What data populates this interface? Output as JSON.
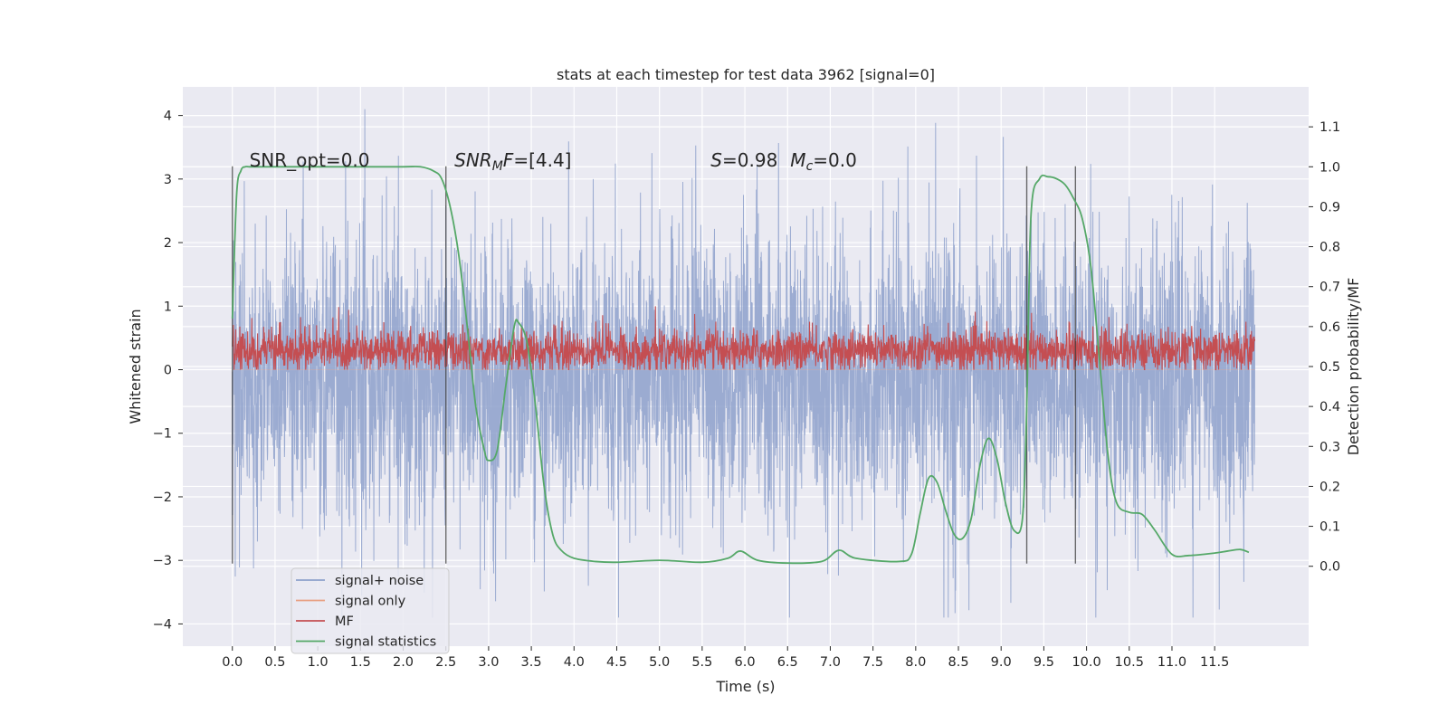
{
  "chart_data": {
    "type": "line",
    "title": "stats at each timestep for test data 3962 [signal=0]",
    "xlabel": "Time (s)",
    "ylabel_left": "Whitened strain",
    "ylabel_right": "Detection probability/MF",
    "xlim": [
      -0.58,
      12.6
    ],
    "ylim_left": [
      -4.35,
      4.45
    ],
    "ylim_right": [
      -0.2,
      1.2
    ],
    "grid": true,
    "legend_position": "lower-left",
    "x_ticks": [
      0.0,
      0.5,
      1.0,
      1.5,
      2.0,
      2.5,
      3.0,
      3.5,
      4.0,
      4.5,
      5.0,
      5.5,
      6.0,
      6.5,
      7.0,
      7.5,
      8.0,
      8.5,
      9.0,
      9.5,
      10.0,
      10.5,
      11.0,
      11.5
    ],
    "x_tick_labels": [
      "0.0",
      "0.5",
      "1.0",
      "1.5",
      "2.0",
      "2.5",
      "3.0",
      "3.5",
      "4.0",
      "4.5",
      "5.0",
      "5.5",
      "6.0",
      "6.5",
      "7.0",
      "7.5",
      "8.0",
      "8.5",
      "9.0",
      "9.5",
      "10.0",
      "10.5",
      "11.0",
      "11.5"
    ],
    "y_left_ticks": [
      -4,
      -3,
      -2,
      -1,
      0,
      1,
      2,
      3,
      4
    ],
    "y_left_tick_labels": [
      "−4",
      "−3",
      "−2",
      "−1",
      "0",
      "1",
      "2",
      "3",
      "4"
    ],
    "y_right_ticks": [
      0.0,
      0.1,
      0.2,
      0.3,
      0.4,
      0.5,
      0.6,
      0.7,
      0.8,
      0.9,
      1.0,
      1.1
    ],
    "y_right_tick_labels": [
      "0.0",
      "0.1",
      "0.2",
      "0.3",
      "0.4",
      "0.5",
      "0.6",
      "0.7",
      "0.8",
      "0.9",
      "1.0",
      "1.1"
    ],
    "annotations": [
      {
        "text": "SNR_opt=0.0",
        "x": 0.2,
        "y": 3.2
      },
      {
        "text": "SNR_M F=[4.4]",
        "x": 2.6,
        "y": 3.2
      },
      {
        "text": "S=0.98   M_c=0.0",
        "x": 5.6,
        "y": 3.2
      }
    ],
    "vertical_lines": {
      "x": [
        0.0,
        2.5,
        9.3,
        9.87
      ],
      "y_range": [
        -3.05,
        3.2
      ]
    },
    "series": [
      {
        "name": "signal+ noise",
        "color": "#8da0cb",
        "axis": "left",
        "kind": "noise",
        "x_range": [
          0.0,
          11.97
        ],
        "typical_range": [
          -1.8,
          1.5
        ],
        "extreme_range": [
          -3.9,
          4.1
        ]
      },
      {
        "name": "signal only",
        "color": "#e8a083",
        "axis": "left",
        "kind": "flat",
        "value": 0
      },
      {
        "name": "MF",
        "color": "#c44e52",
        "axis": "left",
        "kind": "noise",
        "x_range": [
          0.0,
          11.97
        ],
        "typical_range": [
          0.05,
          0.65
        ],
        "extreme_range": [
          0.0,
          1.0
        ]
      },
      {
        "name": "signal statistics",
        "color": "#55a868",
        "axis": "right",
        "x": [
          0.0,
          0.05,
          0.1,
          0.15,
          0.2,
          0.3,
          0.5,
          1.0,
          1.5,
          2.0,
          2.2,
          2.35,
          2.45,
          2.55,
          2.65,
          2.75,
          2.85,
          2.95,
          3.0,
          3.1,
          3.2,
          3.3,
          3.35,
          3.45,
          3.55,
          3.65,
          3.75,
          3.85,
          4.0,
          4.25,
          4.5,
          5.0,
          5.5,
          5.8,
          5.95,
          6.15,
          6.5,
          6.9,
          7.1,
          7.3,
          7.8,
          7.95,
          8.05,
          8.15,
          8.25,
          8.35,
          8.45,
          8.55,
          8.65,
          8.75,
          8.85,
          8.95,
          9.05,
          9.15,
          9.25,
          9.3,
          9.35,
          9.45,
          9.55,
          9.65,
          9.75,
          9.85,
          9.95,
          10.05,
          10.15,
          10.25,
          10.35,
          10.5,
          10.65,
          10.8,
          11.0,
          11.2,
          11.5,
          11.65,
          11.8,
          11.9
        ],
        "y": [
          0.62,
          0.93,
          0.99,
          1.0,
          1.0,
          1.0,
          1.0,
          1.0,
          1.0,
          1.0,
          1.0,
          0.99,
          0.97,
          0.9,
          0.78,
          0.6,
          0.4,
          0.29,
          0.265,
          0.29,
          0.45,
          0.6,
          0.61,
          0.56,
          0.4,
          0.2,
          0.08,
          0.04,
          0.02,
          0.012,
          0.01,
          0.015,
          0.01,
          0.02,
          0.038,
          0.015,
          0.008,
          0.012,
          0.04,
          0.02,
          0.012,
          0.03,
          0.13,
          0.22,
          0.21,
          0.14,
          0.08,
          0.07,
          0.12,
          0.25,
          0.32,
          0.27,
          0.16,
          0.09,
          0.12,
          0.4,
          0.88,
          0.97,
          0.975,
          0.97,
          0.955,
          0.92,
          0.87,
          0.75,
          0.52,
          0.28,
          0.16,
          0.135,
          0.13,
          0.09,
          0.03,
          0.027,
          0.033,
          0.038,
          0.042,
          0.035
        ]
      }
    ]
  }
}
